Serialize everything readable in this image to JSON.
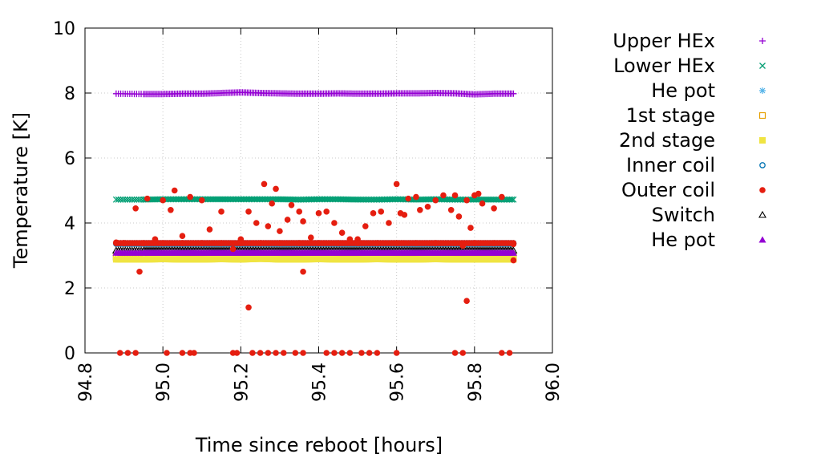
{
  "chart_data": {
    "type": "scatter",
    "xlabel": "Time since reboot [hours]",
    "ylabel": "Temperature [K]",
    "xlim": [
      94.8,
      96.0
    ],
    "ylim": [
      0,
      10
    ],
    "x_ticks": [
      "94.8",
      "95.0",
      "95.2",
      "95.4",
      "95.6",
      "95.8",
      "96.0"
    ],
    "y_ticks": [
      "0",
      "2",
      "4",
      "6",
      "8",
      "10"
    ],
    "grid": true,
    "legend_position": "right",
    "series": [
      {
        "name": "Upper HEx",
        "marker": "plus",
        "color": "#9400d3",
        "x": [
          94.88,
          94.95,
          95.0,
          95.05,
          95.1,
          95.15,
          95.2,
          95.25,
          95.3,
          95.35,
          95.4,
          95.45,
          95.5,
          95.55,
          95.6,
          95.65,
          95.7,
          95.75,
          95.8,
          95.85,
          95.9
        ],
        "y": [
          7.98,
          7.97,
          7.97,
          7.98,
          7.98,
          8.0,
          8.02,
          8.0,
          7.99,
          7.98,
          7.98,
          7.99,
          7.98,
          7.98,
          7.99,
          7.99,
          8.0,
          7.99,
          7.96,
          7.98,
          7.98
        ]
      },
      {
        "name": "Lower HEx",
        "marker": "cross",
        "color": "#009e73",
        "x": [
          94.88,
          94.95,
          95.0,
          95.05,
          95.1,
          95.15,
          95.2,
          95.25,
          95.3,
          95.35,
          95.4,
          95.45,
          95.5,
          95.55,
          95.6,
          95.65,
          95.7,
          95.75,
          95.8,
          95.85,
          95.9
        ],
        "y": [
          4.72,
          4.72,
          4.73,
          4.73,
          4.73,
          4.73,
          4.73,
          4.73,
          4.73,
          4.72,
          4.73,
          4.73,
          4.72,
          4.72,
          4.73,
          4.72,
          4.73,
          4.72,
          4.72,
          4.72,
          4.72
        ]
      },
      {
        "name": "He pot",
        "marker": "star",
        "color": "#56b4e9",
        "x": [
          94.88,
          94.95,
          95.0,
          95.05,
          95.1,
          95.15,
          95.2,
          95.25,
          95.3,
          95.35,
          95.4,
          95.45,
          95.5,
          95.55,
          95.6,
          95.65,
          95.7,
          95.75,
          95.8,
          95.85,
          95.9
        ],
        "y": [
          3.38,
          3.38,
          3.38,
          3.38,
          3.38,
          3.38,
          3.38,
          3.38,
          3.38,
          3.38,
          3.38,
          3.38,
          3.38,
          3.38,
          3.38,
          3.38,
          3.38,
          3.38,
          3.38,
          3.38,
          3.38
        ]
      },
      {
        "name": "1st stage",
        "marker": "open-square",
        "color": "#e69f00",
        "x": [
          94.88,
          94.95,
          95.0,
          95.05,
          95.1,
          95.15,
          95.2,
          95.25,
          95.3,
          95.35,
          95.4,
          95.45,
          95.5,
          95.55,
          95.6,
          95.65,
          95.7,
          95.75,
          95.8,
          95.85,
          95.9
        ],
        "y": [
          2.95,
          2.95,
          2.95,
          2.95,
          2.95,
          2.95,
          2.95,
          2.95,
          2.95,
          2.95,
          2.95,
          2.95,
          2.95,
          2.95,
          2.95,
          2.95,
          2.95,
          2.95,
          2.95,
          2.95,
          2.95
        ]
      },
      {
        "name": "2nd stage",
        "marker": "filled-square",
        "color": "#f0e442",
        "x": [
          94.88,
          94.95,
          95.0,
          95.05,
          95.1,
          95.15,
          95.2,
          95.25,
          95.3,
          95.35,
          95.4,
          95.45,
          95.5,
          95.55,
          95.6,
          95.65,
          95.7,
          95.75,
          95.8,
          95.85,
          95.9
        ],
        "y": [
          2.88,
          2.88,
          2.89,
          2.88,
          2.88,
          2.89,
          2.88,
          2.9,
          2.88,
          2.88,
          2.89,
          2.88,
          2.88,
          2.89,
          2.88,
          2.88,
          2.89,
          2.88,
          2.88,
          2.88,
          2.88
        ]
      },
      {
        "name": "Inner coil",
        "marker": "open-circle",
        "color": "#0072b2",
        "x": [
          94.88,
          94.95,
          95.0,
          95.05,
          95.1,
          95.15,
          95.2,
          95.25,
          95.3,
          95.35,
          95.4,
          95.45,
          95.5,
          95.55,
          95.6,
          95.65,
          95.7,
          95.75,
          95.8,
          95.85,
          95.9
        ],
        "y": [
          3.36,
          3.36,
          3.36,
          3.36,
          3.36,
          3.36,
          3.36,
          3.36,
          3.36,
          3.36,
          3.36,
          3.36,
          3.36,
          3.36,
          3.36,
          3.36,
          3.36,
          3.36,
          3.36,
          3.36,
          3.36
        ]
      },
      {
        "name": "Outer coil",
        "marker": "filled-circle",
        "color": "#e51e10",
        "x": [
          94.88,
          94.9,
          94.93,
          94.96,
          94.98,
          95.0,
          95.02,
          95.03,
          95.05,
          95.07,
          95.1,
          95.12,
          95.15,
          95.18,
          95.2,
          95.22,
          95.24,
          95.26,
          95.27,
          95.28,
          95.29,
          95.3,
          95.32,
          95.33,
          95.35,
          95.36,
          95.38,
          95.4,
          95.42,
          95.44,
          95.46,
          95.48,
          95.5,
          95.52,
          95.54,
          95.56,
          95.58,
          95.6,
          95.61,
          95.62,
          95.63,
          95.65,
          95.66,
          95.68,
          95.7,
          95.72,
          95.74,
          95.75,
          95.76,
          95.77,
          95.78,
          95.79,
          95.8,
          95.81,
          95.82,
          95.85,
          95.87,
          95.9,
          94.88,
          94.9,
          94.95,
          95.0,
          95.05,
          95.1,
          95.15,
          95.2,
          95.25,
          95.3,
          95.35,
          95.4,
          95.45,
          95.5,
          95.55,
          95.6,
          95.65,
          95.7,
          95.75,
          95.8,
          95.85,
          95.9,
          94.89,
          94.91,
          94.93,
          95.01,
          95.05,
          95.07,
          95.08,
          95.18,
          95.19,
          95.23,
          95.25,
          95.27,
          95.29,
          95.31,
          95.34,
          95.36,
          95.42,
          95.44,
          95.46,
          95.48,
          95.51,
          95.53,
          95.55,
          95.6,
          95.75,
          95.77,
          95.87,
          95.89,
          95.36,
          94.94,
          95.22,
          95.78,
          95.9
        ],
        "y": [
          3.4,
          3.38,
          4.45,
          4.75,
          3.5,
          4.7,
          4.4,
          5.0,
          3.6,
          4.8,
          4.7,
          3.8,
          4.35,
          3.2,
          3.5,
          4.35,
          4.0,
          5.2,
          3.9,
          4.6,
          5.05,
          3.75,
          4.1,
          4.55,
          4.35,
          4.05,
          3.55,
          4.3,
          4.35,
          4.0,
          3.7,
          3.5,
          3.5,
          3.9,
          4.3,
          4.35,
          4.0,
          5.2,
          4.3,
          4.25,
          4.75,
          4.8,
          4.4,
          4.5,
          4.7,
          4.85,
          4.4,
          4.85,
          4.2,
          3.3,
          4.7,
          3.85,
          4.85,
          4.9,
          4.6,
          4.45,
          4.8,
          3.35,
          3.38,
          3.38,
          3.38,
          3.38,
          3.38,
          3.38,
          3.38,
          3.38,
          3.38,
          3.38,
          3.38,
          3.38,
          3.38,
          3.38,
          3.38,
          3.38,
          3.38,
          3.38,
          3.38,
          3.38,
          3.38,
          3.38,
          0,
          0,
          0,
          0,
          0,
          0,
          0,
          0,
          0,
          0,
          0,
          0,
          0,
          0,
          0,
          0,
          0,
          0,
          0,
          0,
          0,
          0,
          0,
          0,
          0,
          0,
          0,
          0,
          2.5,
          2.5,
          1.4,
          1.6,
          2.85
        ]
      },
      {
        "name": "Switch",
        "marker": "open-triangle",
        "color": "#000000",
        "x": [
          94.88,
          94.95,
          95.0,
          95.05,
          95.1,
          95.15,
          95.2,
          95.25,
          95.3,
          95.35,
          95.4,
          95.45,
          95.5,
          95.55,
          95.6,
          95.65,
          95.7,
          95.75,
          95.8,
          95.85,
          95.9
        ],
        "y": [
          3.15,
          3.15,
          3.15,
          3.15,
          3.15,
          3.15,
          3.15,
          3.15,
          3.15,
          3.15,
          3.15,
          3.15,
          3.15,
          3.15,
          3.15,
          3.15,
          3.15,
          3.15,
          3.15,
          3.15,
          3.15
        ]
      },
      {
        "name": "He pot",
        "marker": "filled-triangle",
        "color": "#9400d3",
        "x": [
          94.88,
          94.95,
          95.0,
          95.05,
          95.1,
          95.15,
          95.2,
          95.25,
          95.3,
          95.35,
          95.4,
          95.45,
          95.5,
          95.55,
          95.6,
          95.65,
          95.7,
          95.75,
          95.8,
          95.85,
          95.9
        ],
        "y": [
          3.08,
          3.08,
          3.08,
          3.08,
          3.08,
          3.08,
          3.08,
          3.08,
          3.08,
          3.08,
          3.08,
          3.08,
          3.08,
          3.08,
          3.08,
          3.08,
          3.08,
          3.08,
          3.08,
          3.08,
          3.08
        ]
      }
    ]
  }
}
